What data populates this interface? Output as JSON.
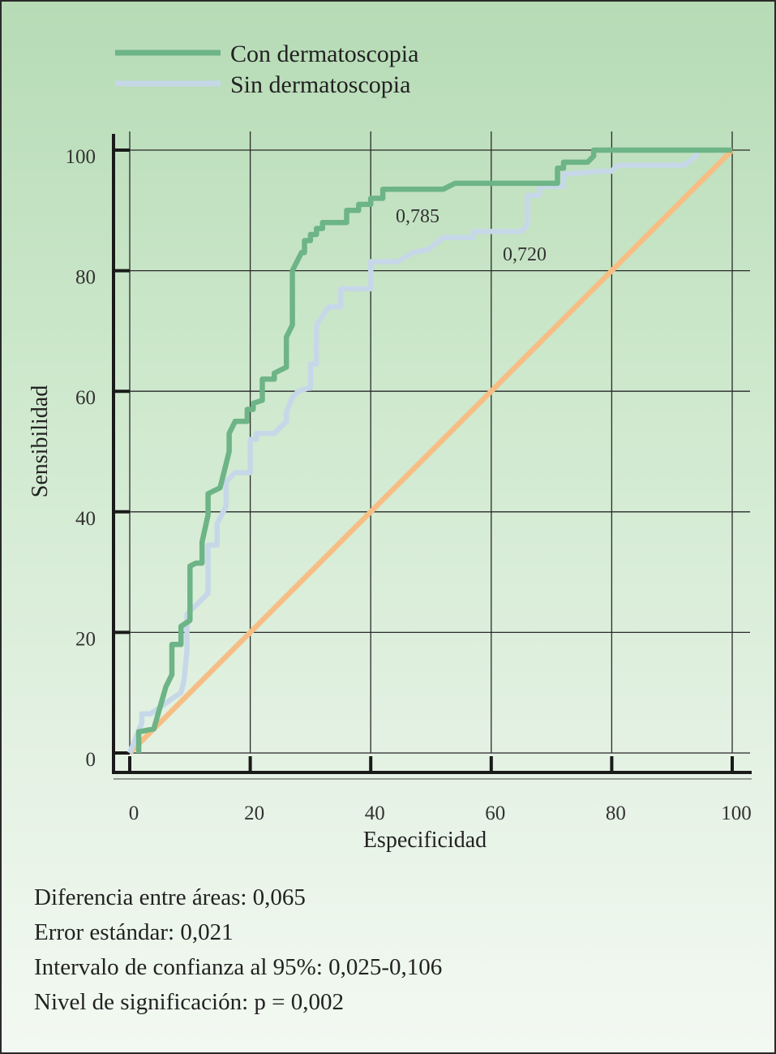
{
  "chart_data": {
    "type": "line",
    "xlabel": "Especificidad",
    "ylabel": "Sensibilidad",
    "xlim": [
      0,
      100
    ],
    "ylim": [
      0,
      100
    ],
    "xticks": [
      "0",
      "20",
      "40",
      "60",
      "80",
      "100"
    ],
    "yticks": [
      "0",
      "20",
      "40",
      "60",
      "80",
      "100"
    ],
    "grid": true,
    "legend_position": "top-left",
    "series": [
      {
        "name": "Con dermatoscopia",
        "color": "#6db486",
        "auc_label": "0,785",
        "points": [
          [
            1.5,
            0
          ],
          [
            1.5,
            3.5
          ],
          [
            4,
            4
          ],
          [
            6,
            11
          ],
          [
            7,
            13
          ],
          [
            7,
            18
          ],
          [
            8.5,
            18
          ],
          [
            8.5,
            21
          ],
          [
            10,
            22
          ],
          [
            10,
            31
          ],
          [
            11,
            31.5
          ],
          [
            12,
            31.5
          ],
          [
            12,
            35
          ],
          [
            13,
            39.5
          ],
          [
            13,
            43
          ],
          [
            15,
            44
          ],
          [
            15.5,
            46
          ],
          [
            16.5,
            50
          ],
          [
            16.5,
            53
          ],
          [
            17.5,
            55
          ],
          [
            19.5,
            55
          ],
          [
            19.5,
            57
          ],
          [
            20.5,
            57
          ],
          [
            20.5,
            58
          ],
          [
            22,
            58.5
          ],
          [
            22,
            62
          ],
          [
            24,
            62
          ],
          [
            24,
            63
          ],
          [
            26,
            64
          ],
          [
            26,
            69
          ],
          [
            27,
            71
          ],
          [
            27,
            80
          ],
          [
            28.5,
            83
          ],
          [
            29,
            83
          ],
          [
            29,
            85
          ],
          [
            30,
            85
          ],
          [
            30,
            86
          ],
          [
            31,
            86
          ],
          [
            31,
            87
          ],
          [
            32,
            87
          ],
          [
            32,
            88
          ],
          [
            36,
            88
          ],
          [
            36,
            90
          ],
          [
            38,
            90
          ],
          [
            38,
            91
          ],
          [
            40,
            91
          ],
          [
            40,
            92
          ],
          [
            42,
            92
          ],
          [
            42,
            93.5
          ],
          [
            52,
            93.5
          ],
          [
            54,
            94.5
          ],
          [
            71,
            94.5
          ],
          [
            71,
            97
          ],
          [
            72,
            97
          ],
          [
            72,
            98
          ],
          [
            76,
            98
          ],
          [
            77,
            99
          ],
          [
            77,
            100
          ],
          [
            100,
            100
          ]
        ]
      },
      {
        "name": "Sin dermatoscopia",
        "color": "#c6d8e8",
        "auc_label": "0,720",
        "points": [
          [
            0,
            0
          ],
          [
            2,
            5
          ],
          [
            2,
            6.5
          ],
          [
            3.5,
            6.5
          ],
          [
            7,
            9
          ],
          [
            8.5,
            10
          ],
          [
            9,
            12
          ],
          [
            9.5,
            17
          ],
          [
            9.5,
            23
          ],
          [
            13,
            26.5
          ],
          [
            13,
            34.5
          ],
          [
            14.5,
            34.5
          ],
          [
            14.5,
            38
          ],
          [
            16,
            41
          ],
          [
            16,
            45
          ],
          [
            17.5,
            46.5
          ],
          [
            20,
            46.5
          ],
          [
            20,
            52
          ],
          [
            21,
            52
          ],
          [
            21,
            53
          ],
          [
            24,
            53
          ],
          [
            26,
            55
          ],
          [
            26,
            56.5
          ],
          [
            27,
            59
          ],
          [
            28,
            60
          ],
          [
            29.5,
            60.5
          ],
          [
            30,
            60.5
          ],
          [
            30,
            64.5
          ],
          [
            31,
            64.5
          ],
          [
            31,
            71
          ],
          [
            33,
            74
          ],
          [
            35,
            74
          ],
          [
            35,
            77
          ],
          [
            40,
            77
          ],
          [
            40,
            81.5
          ],
          [
            44.5,
            81.5
          ],
          [
            47,
            83
          ],
          [
            49.5,
            83.5
          ],
          [
            52,
            85.5
          ],
          [
            57,
            85.5
          ],
          [
            57,
            86.5
          ],
          [
            65,
            86.5
          ],
          [
            66,
            87.5
          ],
          [
            66,
            92.5
          ],
          [
            68,
            92.5
          ],
          [
            68,
            94
          ],
          [
            72,
            94
          ],
          [
            72,
            96
          ],
          [
            78,
            96.5
          ],
          [
            80,
            96.5
          ],
          [
            81,
            97.5
          ],
          [
            92,
            97.5
          ],
          [
            94,
            99
          ],
          [
            94,
            100
          ]
        ]
      },
      {
        "name": "",
        "color": "#f6be84",
        "points": [
          [
            0,
            0
          ],
          [
            100,
            100
          ]
        ]
      }
    ]
  },
  "stats": {
    "line1": "Diferencia entre áreas: 0,065",
    "line2": "Error estándar: 0,021",
    "line3": "Intervalo de confianza al 95%: 0,025-0,106",
    "line4": "Nivel de significación: p = 0,002"
  }
}
